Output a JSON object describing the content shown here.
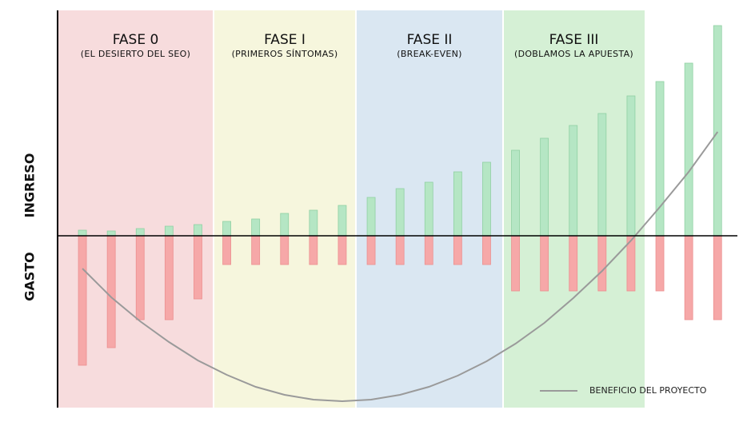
{
  "chart_data": {
    "type": "bar",
    "phases": [
      {
        "title": "FASE 0",
        "subtitle": "(EL DESIERTO DEL SEO)",
        "color": "#f7dcdd"
      },
      {
        "title": "FASE I",
        "subtitle": "(PRIMEROS SÍNTOMAS)",
        "color": "#f6f6dd"
      },
      {
        "title": "FASE II",
        "subtitle": "(BREAK-EVEN)",
        "color": "#dae7f2"
      },
      {
        "title": "FASE III",
        "subtitle": "(DOBLAMOS LA APUESTA)",
        "color": "#d5f0d5"
      }
    ],
    "categories": [
      null,
      null,
      null,
      null,
      null,
      null,
      null,
      null,
      null,
      null,
      null,
      null,
      null,
      null,
      null,
      null,
      null,
      null,
      null,
      null,
      null,
      null,
      null
    ],
    "series": [
      {
        "name": "INGRESO",
        "color": "#b5e6c4",
        "values": [
          7,
          6,
          9,
          12,
          14,
          18,
          21,
          28,
          32,
          38,
          48,
          59,
          67,
          80,
          92,
          107,
          122,
          138,
          153,
          175,
          193,
          216,
          263
        ]
      },
      {
        "name": "GASTO",
        "color": "#f6a8a8",
        "values": [
          -162,
          -140,
          -105,
          -105,
          -79,
          -36,
          -36,
          -36,
          -36,
          -36,
          -36,
          -36,
          -36,
          -36,
          -36,
          -69,
          -69,
          -69,
          -69,
          -69,
          -69,
          -105,
          -105
        ]
      },
      {
        "name": "BENEFICIO DEL PROYECTO",
        "type": "line",
        "color": "#9a9a9a",
        "values": [
          -41,
          -77,
          -107,
          -133,
          -156,
          -174,
          -189,
          -199,
          -205,
          -207,
          -205,
          -199,
          -189,
          -175,
          -157,
          -135,
          -109,
          -78,
          -44,
          -6,
          36,
          80,
          130
        ]
      }
    ],
    "ylim": [
      -215,
      282
    ]
  }
}
